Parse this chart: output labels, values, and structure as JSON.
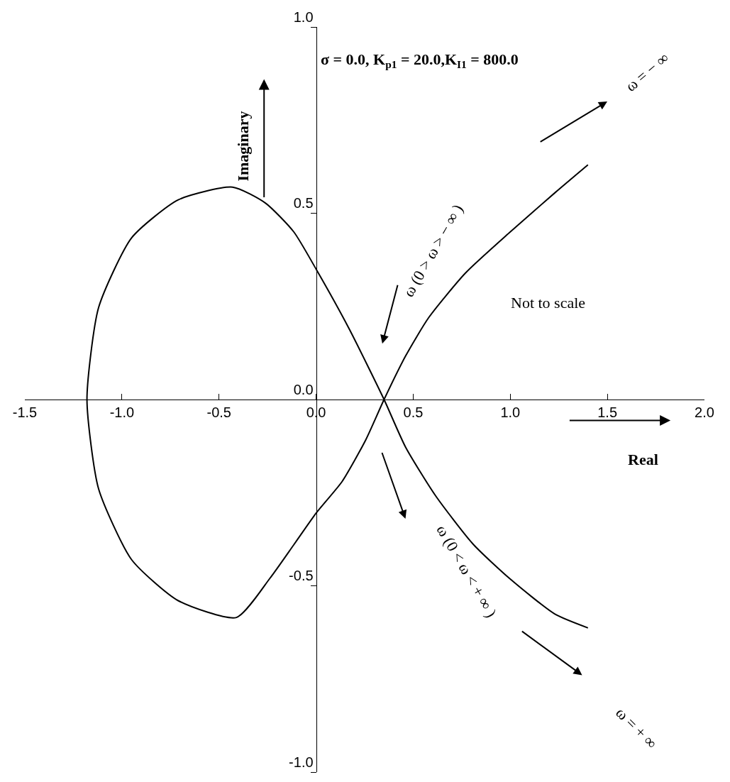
{
  "chart_data": {
    "type": "line",
    "title": "σ = 0.0, K$_{p1}$ = 20.0,K$_{I1}$ = 800.0",
    "xlabel": "Real",
    "ylabel": "Imaginary",
    "annotations": [
      "Not to scale",
      "ω = − ∞",
      "ω (0 > ω > − ∞ )",
      "ω (0 < ω < + ∞ )",
      "ω = + ∞"
    ],
    "x": [
      1.4,
      1.23,
      1.0,
      0.77,
      0.58,
      0.46,
      0.35,
      0.256,
      0.134,
      0,
      -0.115,
      -0.238,
      -0.41,
      -0.71,
      -0.95,
      -1.12,
      -1.18,
      -1.12,
      -0.95,
      -0.71,
      -0.43,
      -0.26,
      -0.115,
      0,
      0.17,
      0.35,
      0.46,
      0.615,
      0.81,
      1.0,
      1.23,
      1.4
    ],
    "series": [
      {
        "color": "#000000",
        "values": [
          0.63,
          0.555,
          0.45,
          0.34,
          0.22,
          0.116,
          0,
          -0.108,
          -0.22,
          -0.305,
          -0.39,
          -0.48,
          -0.585,
          -0.54,
          -0.43,
          -0.24,
          0,
          0.247,
          0.434,
          0.536,
          0.57,
          0.527,
          0.45,
          0.35,
          0.19,
          0,
          -0.127,
          -0.258,
          -0.389,
          -0.482,
          -0.576,
          -0.613
        ]
      }
    ],
    "xlim": [
      -1.5,
      2.0
    ],
    "xticks": [
      -1.5,
      {
        "value": -1,
        "label": "-1.0"
      },
      -0.5,
      {
        "value": 0,
        "label": "0.0"
      },
      0.5,
      {
        "value": 1,
        "label": "1.0"
      },
      1.5,
      {
        "value": 2,
        "label": "2.0"
      }
    ],
    "ylim": [
      -1,
      1
    ],
    "yticks": [
      {
        "value": -1,
        "label": "-1.0"
      },
      -0.5,
      {
        "value": 0,
        "label": "0.0"
      },
      0.5,
      {
        "value": 1,
        "label": "1.0"
      }
    ],
    "grid": false,
    "legend": false,
    "marker": "none",
    "line_style": "solid"
  }
}
